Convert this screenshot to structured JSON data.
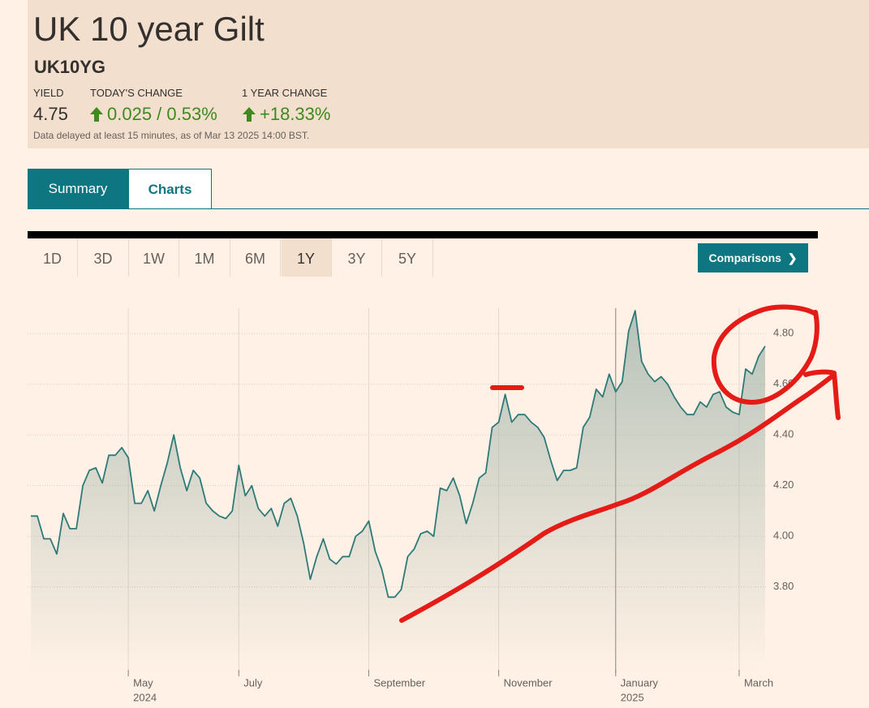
{
  "header": {
    "title": "UK 10 year Gilt",
    "symbol": "UK10YG",
    "stats": [
      {
        "label": "YIELD",
        "value": "4.75"
      },
      {
        "label": "TODAY'S CHANGE",
        "value": "0.025 / 0.53%"
      },
      {
        "label": "1 YEAR CHANGE",
        "value": "+18.33%"
      }
    ],
    "note": "Data delayed at least 15 minutes, as of Mar 13 2025 14:00 BST."
  },
  "tabs": [
    {
      "label": "Summary",
      "selected": true
    },
    {
      "label": "Charts",
      "selected": false
    }
  ],
  "ranges": [
    {
      "label": "1D",
      "selected": false
    },
    {
      "label": "3D",
      "selected": false
    },
    {
      "label": "1W",
      "selected": false
    },
    {
      "label": "1M",
      "selected": false
    },
    {
      "label": "6M",
      "selected": false
    },
    {
      "label": "1Y",
      "selected": true
    },
    {
      "label": "3Y",
      "selected": false
    },
    {
      "label": "5Y",
      "selected": false
    }
  ],
  "comparisons_button": "Comparisons",
  "chart_data": {
    "type": "line",
    "color": "#2e7a78",
    "fill": "#9fb3aa",
    "categories": [
      null,
      null,
      null,
      null,
      null,
      null,
      null,
      null,
      null,
      null,
      null,
      null,
      null,
      null,
      null,
      "May",
      null,
      null,
      null,
      null,
      null,
      null,
      null,
      null,
      null,
      null,
      null,
      null,
      null,
      null,
      null,
      null,
      "July",
      null,
      null,
      null,
      null,
      null,
      null,
      null,
      null,
      null,
      null,
      null,
      null,
      null,
      null,
      null,
      null,
      null,
      null,
      null,
      "September",
      null,
      null,
      null,
      null,
      null,
      null,
      null,
      null,
      null,
      null,
      null,
      null,
      null,
      null,
      null,
      null,
      null,
      null,
      null,
      "November",
      null,
      null,
      null,
      null,
      null,
      null,
      null,
      null,
      null,
      null,
      null,
      null,
      null,
      null,
      null,
      null,
      null,
      "January",
      null,
      null,
      null,
      null,
      null,
      null,
      null,
      null,
      null,
      null,
      null,
      null,
      null,
      null,
      null,
      null,
      null,
      null,
      "March",
      null,
      null,
      null,
      null
    ],
    "category_years": [
      null,
      null,
      null,
      null,
      null,
      null,
      null,
      null,
      null,
      null,
      null,
      null,
      null,
      null,
      null,
      "2024",
      null,
      null,
      null,
      null,
      null,
      null,
      null,
      null,
      null,
      null,
      null,
      null,
      null,
      null,
      null,
      null,
      null,
      null,
      null,
      null,
      null,
      null,
      null,
      null,
      null,
      null,
      null,
      null,
      null,
      null,
      null,
      null,
      null,
      null,
      null,
      null,
      null,
      null,
      null,
      null,
      null,
      null,
      null,
      null,
      null,
      null,
      null,
      null,
      null,
      null,
      null,
      null,
      null,
      null,
      null,
      null,
      null,
      null,
      null,
      null,
      null,
      null,
      null,
      null,
      null,
      null,
      null,
      null,
      null,
      null,
      null,
      null,
      null,
      null,
      "2025",
      null,
      null,
      null,
      null,
      null,
      null,
      null,
      null,
      null,
      null,
      null,
      null,
      null,
      null,
      null,
      null,
      null,
      null,
      null,
      null,
      null,
      null
    ],
    "values": [
      4.08,
      4.08,
      3.99,
      3.99,
      3.93,
      4.09,
      4.03,
      4.03,
      4.2,
      4.26,
      4.27,
      4.21,
      4.32,
      4.32,
      4.35,
      4.31,
      4.13,
      4.13,
      4.18,
      4.1,
      4.2,
      4.29,
      4.4,
      4.27,
      4.18,
      4.26,
      4.23,
      4.13,
      4.1,
      4.08,
      4.07,
      4.1,
      4.28,
      4.16,
      4.2,
      4.11,
      4.08,
      4.11,
      4.04,
      4.13,
      4.15,
      4.08,
      3.97,
      3.83,
      3.92,
      3.99,
      3.91,
      3.89,
      3.92,
      3.92,
      4.0,
      4.02,
      4.06,
      3.94,
      3.87,
      3.76,
      3.76,
      3.79,
      3.92,
      3.95,
      4.01,
      4.02,
      4.0,
      4.19,
      4.18,
      4.23,
      4.16,
      4.05,
      4.13,
      4.23,
      4.25,
      4.43,
      4.45,
      4.56,
      4.45,
      4.48,
      4.48,
      4.45,
      4.43,
      4.39,
      4.3,
      4.22,
      4.26,
      4.26,
      4.27,
      4.43,
      4.47,
      4.58,
      4.55,
      4.64,
      4.57,
      4.61,
      4.81,
      4.89,
      4.69,
      4.64,
      4.61,
      4.63,
      4.6,
      4.55,
      4.51,
      4.48,
      4.48,
      4.53,
      4.51,
      4.56,
      4.57,
      4.51,
      4.49,
      4.48,
      4.66,
      4.64,
      4.71,
      4.75
    ],
    "ylim": [
      3.46,
      4.9
    ],
    "yticks": [
      {
        "value": 3.8,
        "label": "3.80"
      },
      {
        "value": 4.0,
        "label": "4.00"
      },
      {
        "value": 4.2,
        "label": "4.20"
      },
      {
        "value": 4.4,
        "label": "4.40"
      },
      {
        "value": 4.6,
        "label": "4.60"
      },
      {
        "value": 4.8,
        "label": "4.80"
      }
    ],
    "grid": true
  }
}
